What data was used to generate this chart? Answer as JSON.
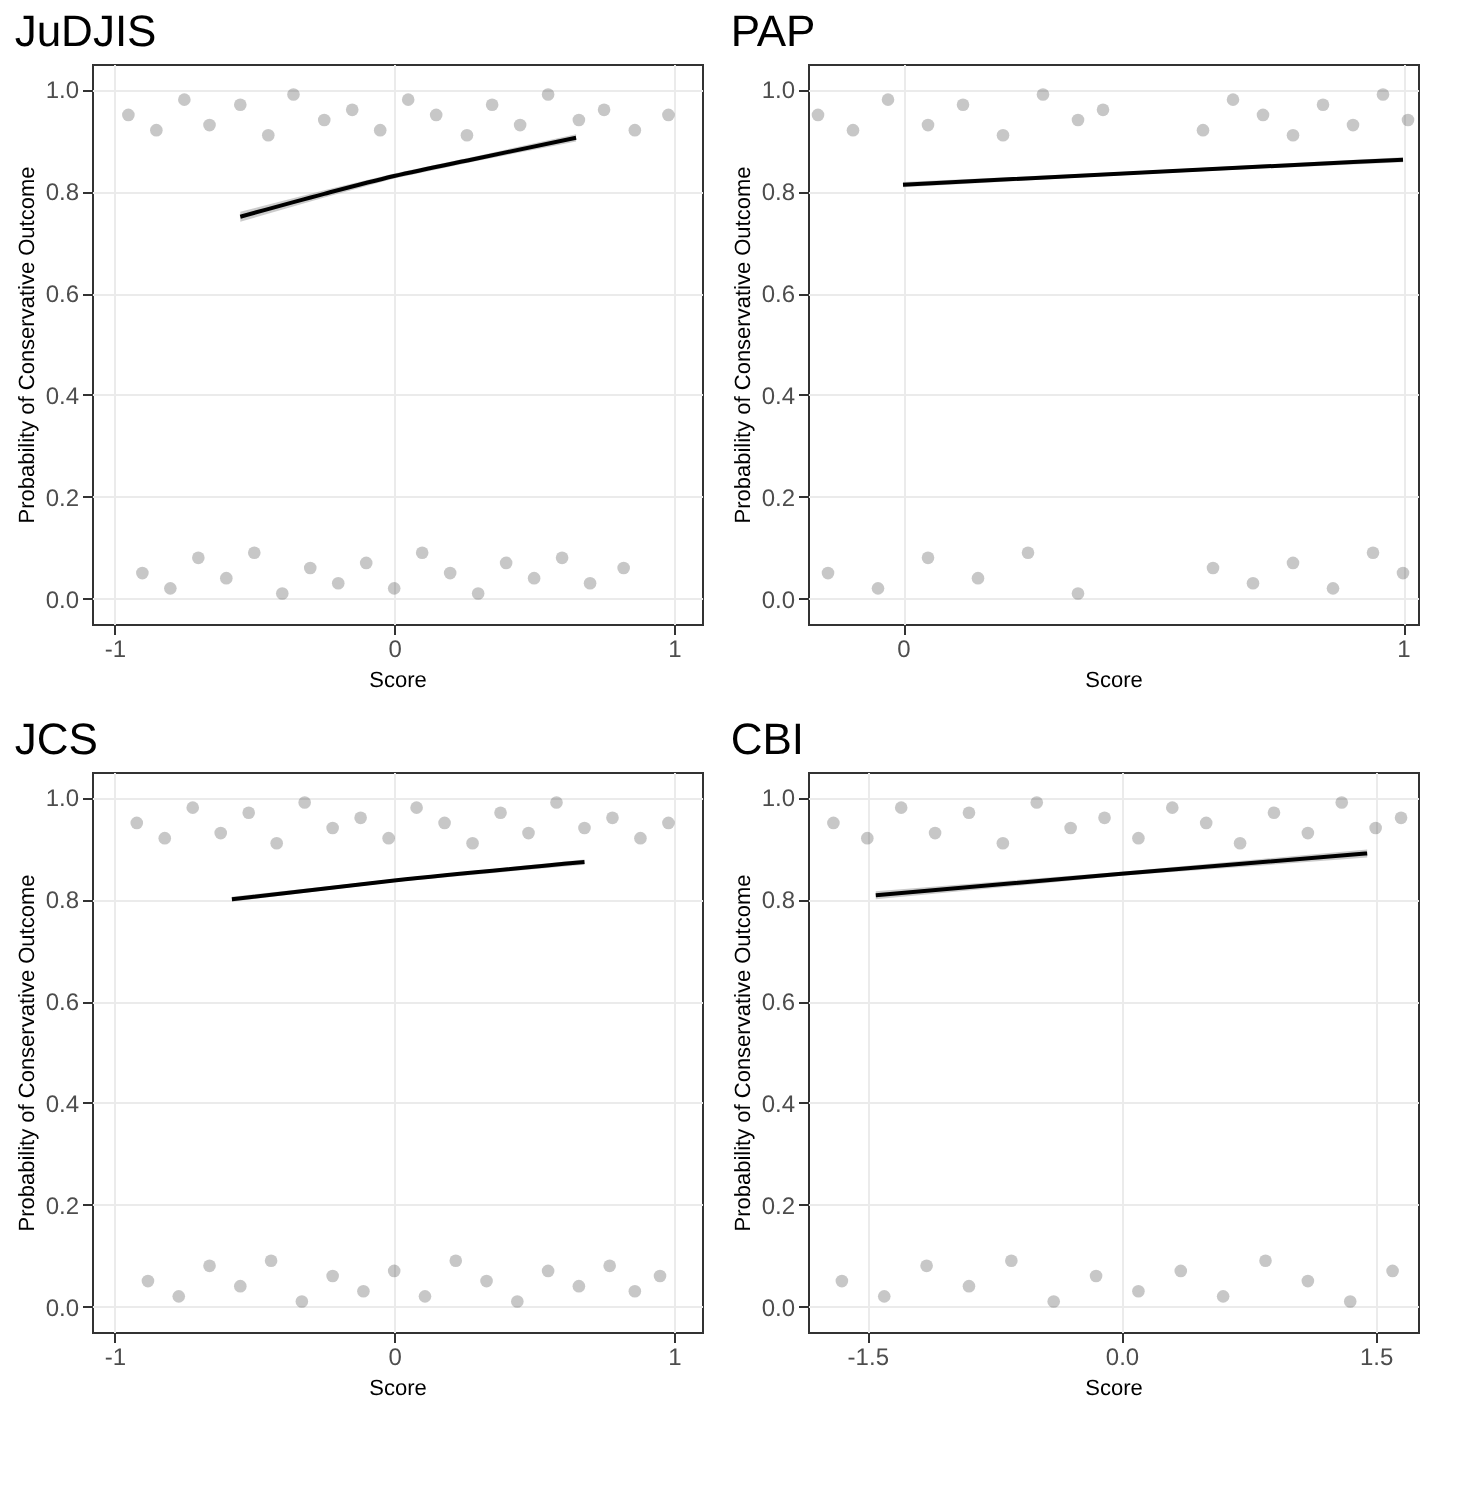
{
  "chart_data": [
    {
      "type": "scatter",
      "title": "JuDJIS",
      "xlabel": "Score",
      "ylabel": "Probability of Conservative Outcome",
      "xlim": [
        -1.08,
        1.1
      ],
      "ylim": [
        -0.05,
        1.05
      ],
      "xticks": [
        -1,
        0,
        1
      ],
      "yticks": [
        {
          "value": 0,
          "label": "0.0"
        },
        {
          "value": 0.2,
          "label": "0.2"
        },
        {
          "value": 0.4,
          "label": "0.4"
        },
        {
          "value": 0.6,
          "label": "0.6"
        },
        {
          "value": 0.8,
          "label": "0.8"
        },
        {
          "value": 1,
          "label": "1.0"
        }
      ],
      "grid": true,
      "series": [
        {
          "marker": "circle",
          "color": "#000000",
          "x": [
            -0.95,
            -0.85,
            -0.75,
            -0.66,
            -0.55,
            -0.45,
            -0.36,
            -0.25,
            -0.15,
            -0.05,
            0.05,
            0.15,
            0.26,
            0.35,
            0.45,
            0.55,
            0.66,
            0.75,
            0.86,
            0.98,
            -0.9,
            -0.8,
            -0.7,
            -0.6,
            -0.5,
            -0.4,
            -0.3,
            -0.2,
            -0.1,
            0,
            0.1,
            0.2,
            0.3,
            0.4,
            0.5,
            0.6,
            0.7,
            0.82
          ],
          "values": [
            0.95,
            0.92,
            0.98,
            0.93,
            0.97,
            0.91,
            0.99,
            0.94,
            0.96,
            0.92,
            0.98,
            0.95,
            0.91,
            0.97,
            0.93,
            0.99,
            0.94,
            0.96,
            0.92,
            0.95,
            0.05,
            0.02,
            0.08,
            0.04,
            0.09,
            0.01,
            0.06,
            0.03,
            0.07,
            0.02,
            0.09,
            0.05,
            0.01,
            0.07,
            0.04,
            0.08,
            0.03,
            0.06
          ]
        },
        {
          "type": "line",
          "color": "#000000",
          "x": [
            -0.55,
            -0.25,
            0,
            0.3,
            0.65
          ],
          "values": [
            0.75,
            0.795,
            0.83,
            0.865,
            0.905
          ],
          "lower": [
            0.74,
            0.788,
            0.825,
            0.86,
            0.898
          ],
          "upper": [
            0.76,
            0.802,
            0.835,
            0.87,
            0.912
          ]
        }
      ]
    },
    {
      "type": "scatter",
      "title": "PAP",
      "xlabel": "Score",
      "ylabel": "Probability of Conservative Outcome",
      "xlim": [
        -0.19,
        1.03
      ],
      "ylim": [
        -0.05,
        1.05
      ],
      "xticks": [
        0,
        1
      ],
      "yticks": [
        {
          "value": 0,
          "label": "0.0"
        },
        {
          "value": 0.2,
          "label": "0.2"
        },
        {
          "value": 0.4,
          "label": "0.4"
        },
        {
          "value": 0.6,
          "label": "0.6"
        },
        {
          "value": 0.8,
          "label": "0.8"
        },
        {
          "value": 1,
          "label": "1.0"
        }
      ],
      "grid": true,
      "series": [
        {
          "marker": "circle",
          "color": "#000000",
          "x": [
            -0.17,
            -0.1,
            -0.03,
            0.05,
            0.12,
            0.2,
            0.28,
            0.35,
            0.4,
            0.6,
            0.66,
            0.72,
            0.78,
            0.84,
            0.9,
            0.96,
            1.01,
            -0.15,
            -0.05,
            0.05,
            0.15,
            0.25,
            0.35,
            0.62,
            0.7,
            0.78,
            0.86,
            0.94,
            1.0
          ],
          "values": [
            0.95,
            0.92,
            0.98,
            0.93,
            0.97,
            0.91,
            0.99,
            0.94,
            0.96,
            0.92,
            0.98,
            0.95,
            0.91,
            0.97,
            0.93,
            0.99,
            0.94,
            0.05,
            0.02,
            0.08,
            0.04,
            0.09,
            0.01,
            0.06,
            0.03,
            0.07,
            0.02,
            0.09,
            0.05
          ]
        },
        {
          "type": "line",
          "color": "#000000",
          "x": [
            0,
            0.5,
            1
          ],
          "values": [
            0.813,
            0.838,
            0.862
          ],
          "lower": [
            0.808,
            0.835,
            0.857
          ],
          "upper": [
            0.818,
            0.841,
            0.867
          ]
        }
      ]
    },
    {
      "type": "scatter",
      "title": "JCS",
      "xlabel": "Score",
      "ylabel": "Probability of Conservative Outcome",
      "xlim": [
        -1.08,
        1.1
      ],
      "ylim": [
        -0.05,
        1.05
      ],
      "xticks": [
        -1,
        0,
        1
      ],
      "yticks": [
        {
          "value": 0,
          "label": "0.0"
        },
        {
          "value": 0.2,
          "label": "0.2"
        },
        {
          "value": 0.4,
          "label": "0.4"
        },
        {
          "value": 0.6,
          "label": "0.6"
        },
        {
          "value": 0.8,
          "label": "0.8"
        },
        {
          "value": 1,
          "label": "1.0"
        }
      ],
      "grid": true,
      "series": [
        {
          "marker": "circle",
          "color": "#000000",
          "x": [
            -0.92,
            -0.82,
            -0.72,
            -0.62,
            -0.52,
            -0.42,
            -0.32,
            -0.22,
            -0.12,
            -0.02,
            0.08,
            0.18,
            0.28,
            0.38,
            0.48,
            0.58,
            0.68,
            0.78,
            0.88,
            0.98,
            -0.88,
            -0.77,
            -0.66,
            -0.55,
            -0.44,
            -0.33,
            -0.22,
            -0.11,
            0,
            0.11,
            0.22,
            0.33,
            0.44,
            0.55,
            0.66,
            0.77,
            0.86,
            0.95
          ],
          "values": [
            0.95,
            0.92,
            0.98,
            0.93,
            0.97,
            0.91,
            0.99,
            0.94,
            0.96,
            0.92,
            0.98,
            0.95,
            0.91,
            0.97,
            0.93,
            0.99,
            0.94,
            0.96,
            0.92,
            0.95,
            0.05,
            0.02,
            0.08,
            0.04,
            0.09,
            0.01,
            0.06,
            0.03,
            0.07,
            0.02,
            0.09,
            0.05,
            0.01,
            0.07,
            0.04,
            0.08,
            0.03,
            0.06
          ]
        },
        {
          "type": "line",
          "color": "#000000",
          "x": [
            -0.58,
            0,
            0.68
          ],
          "values": [
            0.8,
            0.837,
            0.873
          ],
          "lower": [
            0.795,
            0.834,
            0.868
          ],
          "upper": [
            0.805,
            0.84,
            0.878
          ]
        }
      ]
    },
    {
      "type": "scatter",
      "title": "CBI",
      "xlabel": "Score",
      "ylabel": "Probability of Conservative Outcome",
      "xlim": [
        -1.85,
        1.75
      ],
      "ylim": [
        -0.05,
        1.05
      ],
      "xticks": [
        {
          "value": -1.5,
          "label": "-1.5"
        },
        {
          "value": 0,
          "label": "0.0"
        },
        {
          "value": 1.5,
          "label": "1.5"
        }
      ],
      "yticks": [
        {
          "value": 0,
          "label": "0.0"
        },
        {
          "value": 0.2,
          "label": "0.2"
        },
        {
          "value": 0.4,
          "label": "0.4"
        },
        {
          "value": 0.6,
          "label": "0.6"
        },
        {
          "value": 0.8,
          "label": "0.8"
        },
        {
          "value": 1,
          "label": "1.0"
        }
      ],
      "grid": true,
      "series": [
        {
          "marker": "circle",
          "color": "#000000",
          "x": [
            -1.7,
            -1.5,
            -1.3,
            -1.1,
            -0.9,
            -0.7,
            -0.5,
            -0.3,
            -0.1,
            0.1,
            0.3,
            0.5,
            0.7,
            0.9,
            1.1,
            1.3,
            1.5,
            1.65,
            -1.65,
            -1.4,
            -1.15,
            -0.9,
            -0.65,
            -0.4,
            -0.15,
            0.1,
            0.35,
            0.6,
            0.85,
            1.1,
            1.35,
            1.6
          ],
          "values": [
            0.95,
            0.92,
            0.98,
            0.93,
            0.97,
            0.91,
            0.99,
            0.94,
            0.96,
            0.92,
            0.98,
            0.95,
            0.91,
            0.97,
            0.93,
            0.99,
            0.94,
            0.96,
            0.05,
            0.02,
            0.08,
            0.04,
            0.09,
            0.01,
            0.06,
            0.03,
            0.07,
            0.02,
            0.09,
            0.05,
            0.01,
            0.07
          ]
        },
        {
          "type": "line",
          "color": "#000000",
          "x": [
            -1.45,
            0,
            1.45
          ],
          "values": [
            0.808,
            0.85,
            0.89
          ],
          "lower": [
            0.8,
            0.846,
            0.882
          ],
          "upper": [
            0.816,
            0.854,
            0.898
          ]
        }
      ]
    }
  ]
}
